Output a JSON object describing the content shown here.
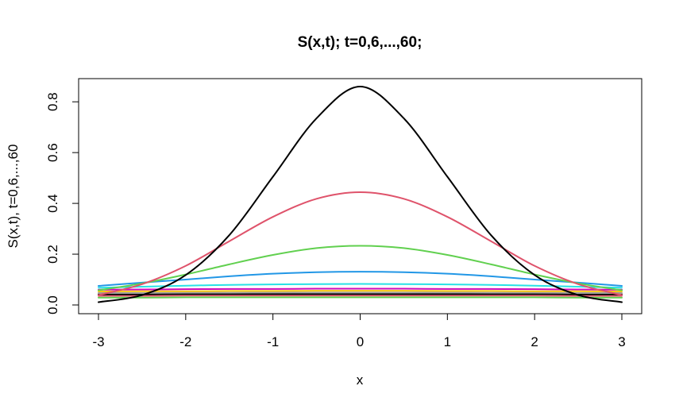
{
  "chart_data": {
    "type": "line",
    "title": "S(x,t); t=0,6,...,60;",
    "xlabel": "x",
    "ylabel": "S(x,t), t=0,6,...,60",
    "xlim": [
      -3,
      3
    ],
    "ylim": [
      0,
      0.86
    ],
    "x_ticks": [
      -3,
      -2,
      -1,
      0,
      1,
      2,
      3
    ],
    "y_ticks": [
      0.0,
      0.2,
      0.4,
      0.6,
      0.8
    ],
    "x_tick_labels": [
      "-3",
      "-2",
      "-1",
      "0",
      "1",
      "2",
      "3"
    ],
    "y_tick_labels": [
      "0.0",
      "0.2",
      "0.4",
      "0.6",
      "0.8"
    ],
    "grid": false,
    "legend": "none",
    "x": [
      -3,
      -2.5,
      -2,
      -1.5,
      -1,
      -0.5,
      0,
      0.5,
      1,
      1.5,
      2,
      2.5,
      3
    ],
    "series": [
      {
        "color": "#000000",
        "values": [
          0.011,
          0.039,
          0.118,
          0.275,
          0.505,
          0.735,
          0.86,
          0.735,
          0.505,
          0.275,
          0.118,
          0.039,
          0.011
        ]
      },
      {
        "color": "#DF536B",
        "values": [
          0.039,
          0.082,
          0.154,
          0.251,
          0.347,
          0.418,
          0.444,
          0.418,
          0.347,
          0.251,
          0.154,
          0.082,
          0.039
        ]
      },
      {
        "color": "#61D04F",
        "values": [
          0.058,
          0.085,
          0.12,
          0.16,
          0.197,
          0.224,
          0.233,
          0.224,
          0.197,
          0.16,
          0.12,
          0.085,
          0.058
        ]
      },
      {
        "color": "#2297E6",
        "values": [
          0.075,
          0.088,
          0.1,
          0.113,
          0.123,
          0.129,
          0.131,
          0.129,
          0.123,
          0.113,
          0.1,
          0.088,
          0.075
        ]
      },
      {
        "color": "#28E2E5",
        "values": [
          0.068,
          0.072,
          0.076,
          0.079,
          0.081,
          0.082,
          0.083,
          0.082,
          0.081,
          0.079,
          0.076,
          0.072,
          0.068
        ]
      },
      {
        "color": "#CD0BBC",
        "values": [
          0.06,
          0.061,
          0.062,
          0.063,
          0.063,
          0.064,
          0.064,
          0.064,
          0.063,
          0.063,
          0.062,
          0.061,
          0.06
        ]
      },
      {
        "color": "#F5C710",
        "values": [
          0.053,
          0.054,
          0.054,
          0.055,
          0.055,
          0.056,
          0.056,
          0.056,
          0.055,
          0.055,
          0.054,
          0.054,
          0.053
        ]
      },
      {
        "color": "#9E9E9E",
        "values": [
          0.047,
          0.047,
          0.048,
          0.048,
          0.049,
          0.049,
          0.049,
          0.049,
          0.049,
          0.048,
          0.048,
          0.047,
          0.047
        ]
      },
      {
        "color": "#000000",
        "values": [
          0.042,
          0.042,
          0.043,
          0.043,
          0.043,
          0.043,
          0.043,
          0.043,
          0.043,
          0.043,
          0.043,
          0.042,
          0.042
        ]
      },
      {
        "color": "#DF536B",
        "values": [
          0.036,
          0.036,
          0.037,
          0.037,
          0.037,
          0.037,
          0.037,
          0.037,
          0.037,
          0.037,
          0.037,
          0.036,
          0.036
        ]
      },
      {
        "color": "#61D04F",
        "values": [
          0.029,
          0.029,
          0.03,
          0.03,
          0.03,
          0.03,
          0.03,
          0.03,
          0.03,
          0.03,
          0.03,
          0.029,
          0.029
        ]
      }
    ]
  }
}
